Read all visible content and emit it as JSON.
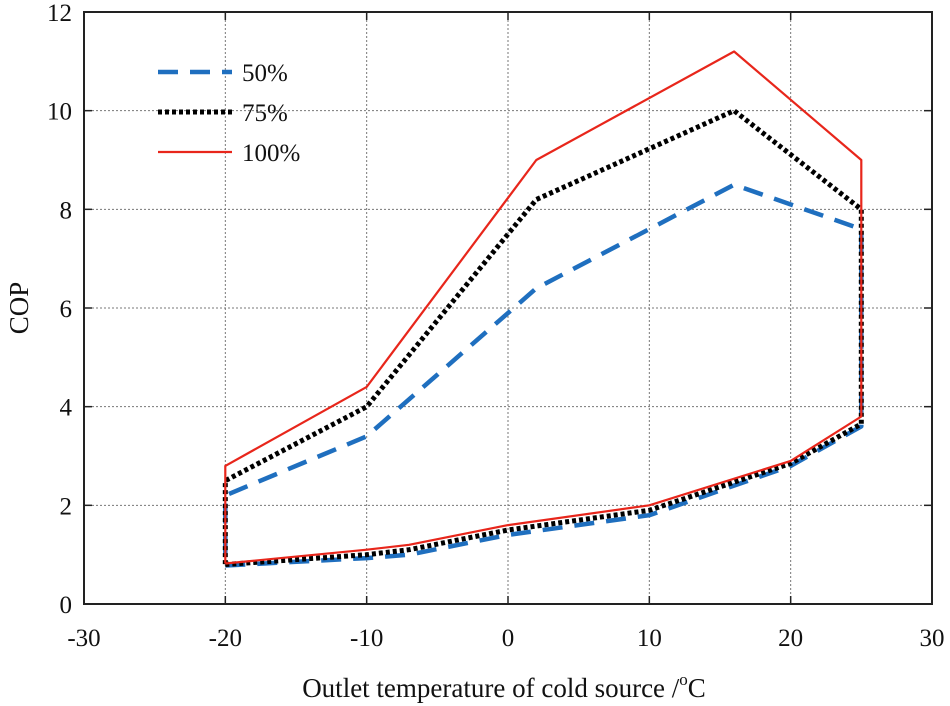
{
  "chart_data": {
    "type": "line",
    "title": "",
    "xlabel": "Outlet temperature of cold source /",
    "xlabel_unit_sup": "o",
    "xlabel_unit": "C",
    "ylabel": "COP",
    "xlim": [
      -30,
      30
    ],
    "ylim": [
      0,
      12
    ],
    "xticks": [
      -30,
      -20,
      -10,
      0,
      10,
      20,
      30
    ],
    "yticks": [
      0,
      2,
      4,
      6,
      8,
      10,
      12
    ],
    "grid": true,
    "legend_position": "top-left",
    "series": [
      {
        "name": "50%",
        "color": "#1f6fbf",
        "style": "dashed",
        "points": [
          [
            -20,
            0.78
          ],
          [
            -10,
            0.93
          ],
          [
            -7,
            1.0
          ],
          [
            0,
            1.4
          ],
          [
            10,
            1.8
          ],
          [
            20,
            2.8
          ],
          [
            25,
            3.6
          ],
          [
            25,
            7.6
          ],
          [
            16,
            8.5
          ],
          [
            2,
            6.4
          ],
          [
            -10,
            3.4
          ],
          [
            -20,
            2.2
          ],
          [
            -20,
            0.78
          ]
        ]
      },
      {
        "name": "75%",
        "color": "#000000",
        "style": "dotted",
        "points": [
          [
            -20,
            0.8
          ],
          [
            -10,
            1.0
          ],
          [
            -7,
            1.1
          ],
          [
            0,
            1.5
          ],
          [
            10,
            1.9
          ],
          [
            20,
            2.85
          ],
          [
            25,
            3.65
          ],
          [
            25,
            8.0
          ],
          [
            16,
            10.0
          ],
          [
            2,
            8.2
          ],
          [
            -10,
            4.0
          ],
          [
            -20,
            2.5
          ],
          [
            -20,
            0.8
          ]
        ]
      },
      {
        "name": "100%",
        "color": "#e8261b",
        "style": "solid",
        "points": [
          [
            -20,
            0.82
          ],
          [
            -10,
            1.1
          ],
          [
            -7,
            1.2
          ],
          [
            0,
            1.6
          ],
          [
            10,
            2.0
          ],
          [
            20,
            2.9
          ],
          [
            25,
            3.8
          ],
          [
            25,
            9.0
          ],
          [
            16,
            11.2
          ],
          [
            2,
            9.0
          ],
          [
            -10,
            4.4
          ],
          [
            -20,
            2.8
          ],
          [
            -20,
            0.82
          ]
        ]
      }
    ]
  }
}
